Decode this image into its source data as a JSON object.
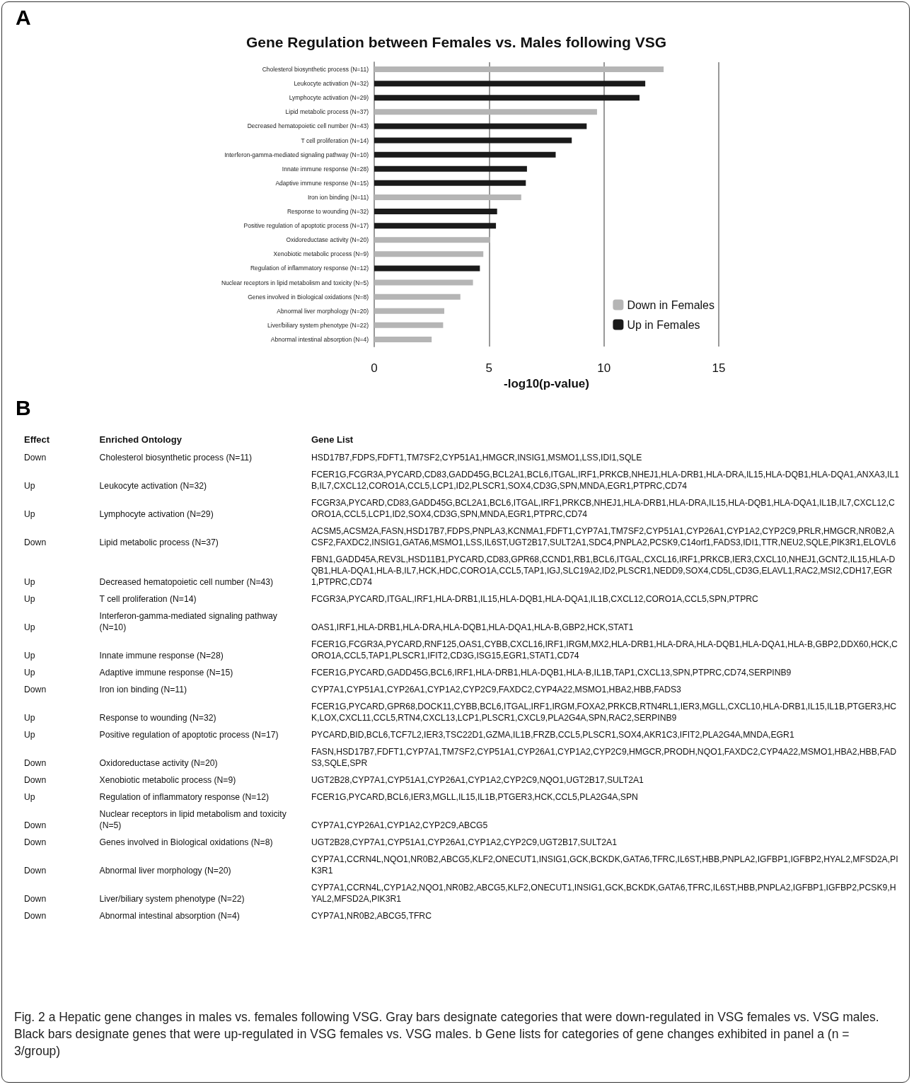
{
  "chart_data": [
    {
      "type": "bar",
      "orientation": "horizontal",
      "stacked": true,
      "title": "Gene Regulation between Females vs. Males following VSG",
      "xlabel": "-log10(p-value)",
      "annotations": [
        "A"
      ],
      "categories": [
        "Cholesterol biosynthetic process (N=11)",
        "Leukocyte activation (N=32)",
        "Lymphocyte activation (N=29)",
        "Lipid metabolic process (N=37)",
        "Decreased hematopoietic cell number (N=43)",
        "T cell proliferation (N=14)",
        "Interferon-gamma-mediated signaling pathway (N=10)",
        "Innate immune response (N=28)",
        "Adaptive immune response (N=15)",
        "Iron ion binding (N=11)",
        "Response to wounding (N=32)",
        "Positive regulation of apoptotic process (N=17)",
        "Oxidoreductase activity (N=20)",
        "Xenobiotic metabolic process (N=9)",
        "Regulation of inflammatory response (N=12)",
        "Nuclear receptors in lipid metabolism and toxicity (N=5)",
        "Genes involved in Biological oxidations (N=8)",
        "Abnormal liver morphology (N=20)",
        "Liver/biliary system phenotype (N=22)",
        "Abnormal intestinal absorption (N=4)"
      ],
      "series": [
        {
          "name": "Down in Females",
          "color": "#b5b5b5",
          "values": [
            12.6,
            null,
            null,
            9.7,
            null,
            null,
            null,
            null,
            null,
            6.4,
            null,
            null,
            5.05,
            4.75,
            null,
            4.3,
            3.75,
            3.05,
            3.0,
            2.5
          ]
        },
        {
          "name": "Up in Females",
          "color": "#1a1a1a",
          "values": [
            null,
            11.8,
            11.55,
            null,
            9.25,
            8.6,
            7.9,
            6.65,
            6.6,
            null,
            5.35,
            5.3,
            null,
            null,
            4.6,
            null,
            null,
            null,
            null,
            null
          ]
        }
      ],
      "xlim": [
        0,
        15
      ],
      "xticks": [
        0,
        5,
        10,
        15
      ],
      "grid": "x",
      "legend": "bottom right"
    },
    {
      "type": "other",
      "annotations": [
        "B",
        "Fig. 2 a Hepatic gene changes in males vs. females following VSG. Gray bars designate categories that were down-regulated in VSG females vs. VSG males. Black bars designate genes that were up-regulated in VSG females vs. VSG males. b Gene lists for categories of gene changes exhibited in panel a (n = 3/group)"
      ],
      "categories": [
        "Effect",
        "Enriched Ontology",
        "Gene List"
      ],
      "cell_labels": [
        [
          "Down",
          "Cholesterol biosynthetic process (N=11)",
          "HSD17B7,FDPS,FDFT1,TM7SF2,CYP51A1,HMGCR,INSIG1,MSMO1,LSS,IDI1,SQLE"
        ],
        [
          "Up",
          "Leukocyte activation (N=32)",
          "FCER1G,FCGR3A,PYCARD,CD83,GADD45G,BCL2A1,BCL6,ITGAL,IRF1,PRKCB,NHEJ1,HLA-DRB1,HLA-DRA,IL15,HLA-DQB1,HLA-DQA1,ANXA3,IL1B,IL7,CXCL12,CORO1A,CCL5,LCP1,ID2,PLSCR1,SOX4,CD3G,SPN,MNDA,EGR1,PTPRC,CD74"
        ],
        [
          "Up",
          "Lymphocyte activation (N=29)",
          "FCGR3A,PYCARD,CD83,GADD45G,BCL2A1,BCL6,ITGAL,IRF1,PRKCB,NHEJ1,HLA-DRB1,HLA-DRA,IL15,HLA-DQB1,HLA-DQA1,IL1B,IL7,CXCL12,CORO1A,CCL5,LCP1,ID2,SOX4,CD3G,SPN,MNDA,EGR1,PTPRC,CD74"
        ],
        [
          "Down",
          "Lipid metabolic process (N=37)",
          "ACSM5,ACSM2A,FASN,HSD17B7,FDPS,PNPLA3,KCNMA1,FDFT1,CYP7A1,TM7SF2,CYP51A1,CYP26A1,CYP1A2,CYP2C9,PRLR,HMGCR,NR0B2,ACSF2,FAXDC2,INSIG1,GATA6,MSMO1,LSS,IL6ST,UGT2B17,SULT2A1,SDC4,PNPLA2,PCSK9,C14orf1,FADS3,IDI1,TTR,NEU2,SQLE,PIK3R1,ELOVL6"
        ],
        [
          "Up",
          "Decreased hematopoietic cell number (N=43)",
          "FBN1,GADD45A,REV3L,HSD11B1,PYCARD,CD83,GPR68,CCND1,RB1,BCL6,ITGAL,CXCL16,IRF1,PRKCB,IER3,CXCL10,NHEJ1,GCNT2,IL15,HLA-DQB1,HLA-DQA1,HLA-B,IL7,HCK,HDC,CORO1A,CCL5,TAP1,IGJ,SLC19A2,ID2,PLSCR1,NEDD9,SOX4,CD5L,CD3G,ELAVL1,RAC2,MSI2,CDH17,EGR1,PTPRC,CD74"
        ],
        [
          "Up",
          "T cell proliferation (N=14)",
          "FCGR3A,PYCARD,ITGAL,IRF1,HLA-DRB1,IL15,HLA-DQB1,HLA-DQA1,IL1B,CXCL12,CORO1A,CCL5,SPN,PTPRC"
        ],
        [
          "Up",
          "Interferon-gamma-mediated signaling pathway (N=10)",
          "OAS1,IRF1,HLA-DRB1,HLA-DRA,HLA-DQB1,HLA-DQA1,HLA-B,GBP2,HCK,STAT1"
        ],
        [
          "Up",
          "Innate immune response (N=28)",
          "FCER1G,FCGR3A,PYCARD,RNF125,OAS1,CYBB,CXCL16,IRF1,IRGM,MX2,HLA-DRB1,HLA-DRA,HLA-DQB1,HLA-DQA1,HLA-B,GBP2,DDX60,HCK,CORO1A,CCL5,TAP1,PLSCR1,IFIT2,CD3G,ISG15,EGR1,STAT1,CD74"
        ],
        [
          "Up",
          "Adaptive immune response (N=15)",
          "FCER1G,PYCARD,GADD45G,BCL6,IRF1,HLA-DRB1,HLA-DQB1,HLA-B,IL1B,TAP1,CXCL13,SPN,PTPRC,CD74,SERPINB9"
        ],
        [
          "Down",
          "Iron ion binding (N=11)",
          "CYP7A1,CYP51A1,CYP26A1,CYP1A2,CYP2C9,FAXDC2,CYP4A22,MSMO1,HBA2,HBB,FADS3"
        ],
        [
          "Up",
          "Response to wounding (N=32)",
          "FCER1G,PYCARD,GPR68,DOCK11,CYBB,BCL6,ITGAL,IRF1,IRGM,FOXA2,PRKCB,RTN4RL1,IER3,MGLL,CXCL10,HLA-DRB1,IL15,IL1B,PTGER3,HCK,LOX,CXCL11,CCL5,RTN4,CXCL13,LCP1,PLSCR1,CXCL9,PLA2G4A,SPN,RAC2,SERPINB9"
        ],
        [
          "Up",
          "Positive regulation of apoptotic process (N=17)",
          "PYCARD,BID,BCL6,TCF7L2,IER3,TSC22D1,GZMA,IL1B,FRZB,CCL5,PLSCR1,SOX4,AKR1C3,IFIT2,PLA2G4A,MNDA,EGR1"
        ],
        [
          "Down",
          "Oxidoreductase activity (N=20)",
          "FASN,HSD17B7,FDFT1,CYP7A1,TM7SF2,CYP51A1,CYP26A1,CYP1A2,CYP2C9,HMGCR,PRODH,NQO1,FAXDC2,CYP4A22,MSMO1,HBA2,HBB,FADS3,SQLE,SPR"
        ],
        [
          "Down",
          "Xenobiotic metabolic process (N=9)",
          "UGT2B28,CYP7A1,CYP51A1,CYP26A1,CYP1A2,CYP2C9,NQO1,UGT2B17,SULT2A1"
        ],
        [
          "Up",
          "Regulation of inflammatory response (N=12)",
          "FCER1G,PYCARD,BCL6,IER3,MGLL,IL15,IL1B,PTGER3,HCK,CCL5,PLA2G4A,SPN"
        ],
        [
          "Down",
          "Nuclear receptors in lipid metabolism and toxicity (N=5)",
          "CYP7A1,CYP26A1,CYP1A2,CYP2C9,ABCG5"
        ],
        [
          "Down",
          "Genes involved in Biological oxidations (N=8)",
          "UGT2B28,CYP7A1,CYP51A1,CYP26A1,CYP1A2,CYP2C9,UGT2B17,SULT2A1"
        ],
        [
          "Down",
          "Abnormal liver morphology (N=20)",
          "CYP7A1,CCRN4L,NQO1,NR0B2,ABCG5,KLF2,ONECUT1,INSIG1,GCK,BCKDK,GATA6,TFRC,IL6ST,HBB,PNPLA2,IGFBP1,IGFBP2,HYAL2,MFSD2A,PIK3R1"
        ],
        [
          "Down",
          "Liver/biliary system phenotype (N=22)",
          "CYP7A1,CCRN4L,CYP1A2,NQO1,NR0B2,ABCG5,KLF2,ONECUT1,INSIG1,GCK,BCKDK,GATA6,TFRC,IL6ST,HBB,PNPLA2,IGFBP1,IGFBP2,PCSK9,HYAL2,MFSD2A,PIK3R1"
        ],
        [
          "Down",
          "Abnormal intestinal absorption (N=4)",
          "CYP7A1,NR0B2,ABCG5,TFRC"
        ]
      ]
    }
  ]
}
